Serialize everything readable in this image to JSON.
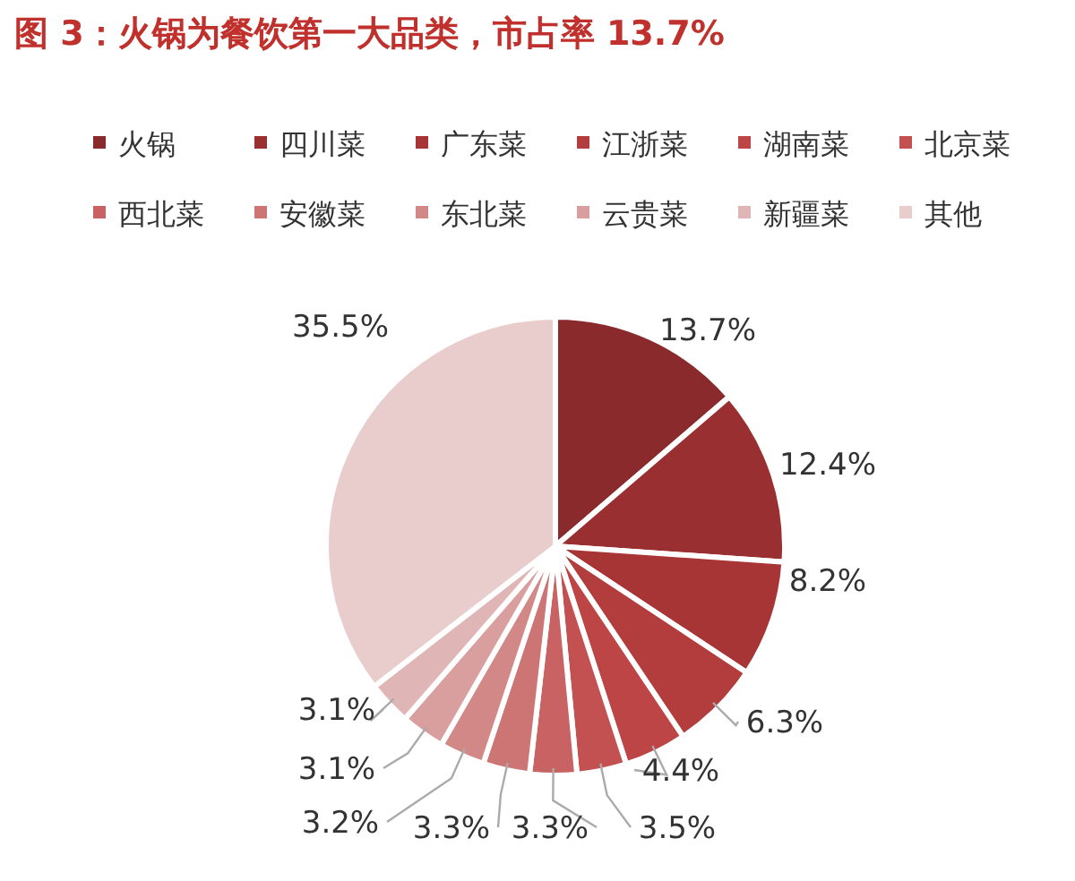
{
  "chart_data": {
    "type": "pie",
    "title": "图 3：火锅为餐饮第一大品类，市占率 13.7%",
    "categories": [
      "火锅",
      "四川菜",
      "广东菜",
      "江浙菜",
      "湖南菜",
      "北京菜",
      "西北菜",
      "安徽菜",
      "东北菜",
      "云贵菜",
      "新疆菜",
      "其他"
    ],
    "values": [
      13.7,
      12.4,
      8.2,
      6.3,
      4.4,
      3.5,
      3.3,
      3.3,
      3.2,
      3.1,
      3.1,
      35.5
    ],
    "value_labels": [
      "13.7%",
      "12.4%",
      "8.2%",
      "6.3%",
      "4.4%",
      "3.5%",
      "3.3%",
      "3.3%",
      "3.2%",
      "3.1%",
      "3.1%",
      "35.5%"
    ],
    "colors": [
      "#8a2a2c",
      "#9a2f31",
      "#a83536",
      "#b33c3c",
      "#bd4546",
      "#c45152",
      "#c96262",
      "#cd7474",
      "#d38888",
      "#d99e9e",
      "#e0b5b5",
      "#e9cdcd"
    ],
    "legend": "top"
  }
}
